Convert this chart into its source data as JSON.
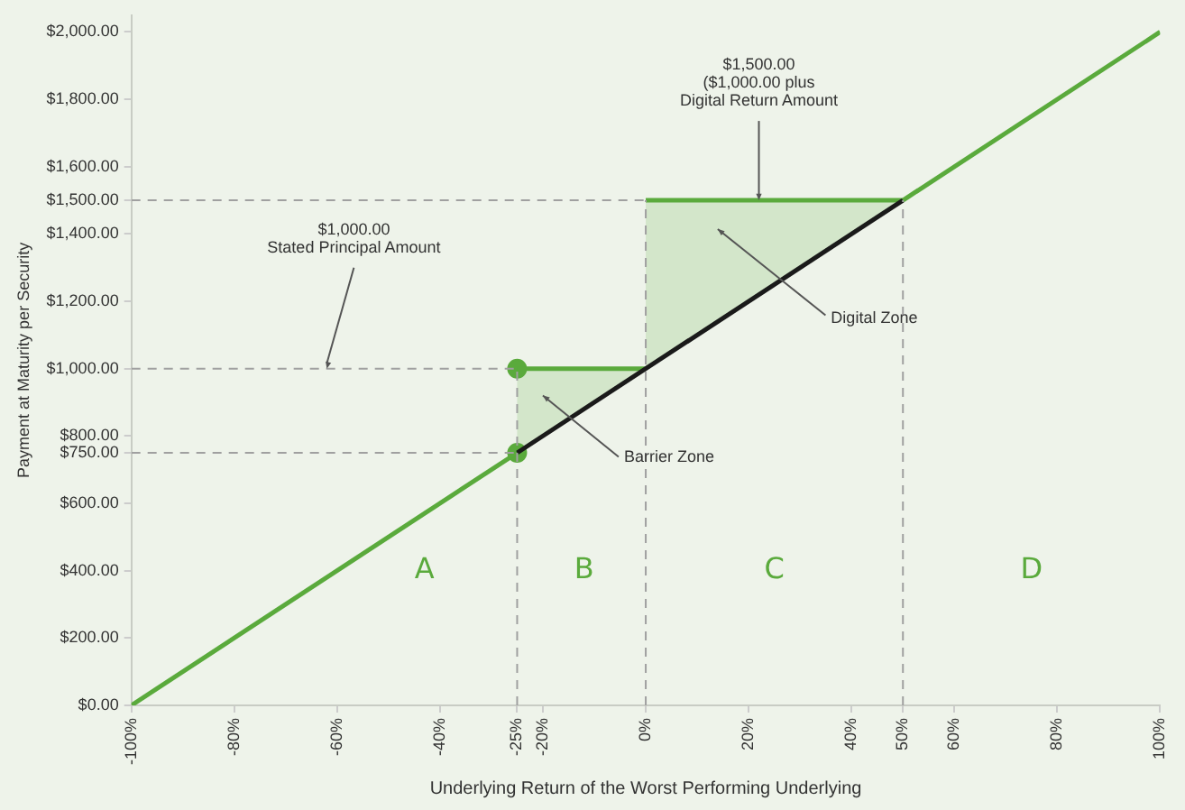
{
  "chart_data": {
    "type": "line",
    "xlabel": "Underlying Return of the Worst Performing Underlying",
    "ylabel": "Payment at Maturity per Security",
    "xlim": [
      -100,
      100
    ],
    "xticks": [
      {
        "value": -100,
        "label": "-100%"
      },
      {
        "value": -80,
        "label": "-80%"
      },
      {
        "value": -60,
        "label": "-60%"
      },
      {
        "value": -40,
        "label": "-40%"
      },
      {
        "value": -25,
        "label": "-25%"
      },
      {
        "value": -20,
        "label": "-20%"
      },
      {
        "value": 0,
        "label": "0%"
      },
      {
        "value": 20,
        "label": "20%"
      },
      {
        "value": 40,
        "label": "40%"
      },
      {
        "value": 50,
        "label": "50%"
      },
      {
        "value": 60,
        "label": "60%"
      },
      {
        "value": 80,
        "label": "80%"
      },
      {
        "value": 100,
        "label": "100%"
      }
    ],
    "ylim": [
      0,
      2050
    ],
    "yticks": [
      {
        "value": 0,
        "label": "$0.00"
      },
      {
        "value": 200,
        "label": "$200.00"
      },
      {
        "value": 400,
        "label": "$400.00"
      },
      {
        "value": 600,
        "label": "$600.00"
      },
      {
        "value": 750,
        "label": "$750.00"
      },
      {
        "value": 800,
        "label": "$800.00"
      },
      {
        "value": 1000,
        "label": "$1,000.00"
      },
      {
        "value": 1200,
        "label": "$1,200.00"
      },
      {
        "value": 1400,
        "label": "$1,400.00"
      },
      {
        "value": 1500,
        "label": "$1,500.00"
      },
      {
        "value": 1600,
        "label": "$1,600.00"
      },
      {
        "value": 1800,
        "label": "$1,800.00"
      },
      {
        "value": 2000,
        "label": "$2,000.00"
      }
    ],
    "grid": false,
    "legend": false,
    "series": [
      {
        "type": "line",
        "color": "#a0a0a0",
        "line_style": "dashed",
        "x": [
          -100,
          0
        ],
        "values": [
          1500,
          1500
        ]
      },
      {
        "type": "line",
        "color": "#a0a0a0",
        "line_style": "dashed",
        "x": [
          -100,
          -25
        ],
        "values": [
          1000,
          1000
        ]
      },
      {
        "type": "line",
        "color": "#a0a0a0",
        "line_style": "dashed",
        "x": [
          -100,
          -25
        ],
        "values": [
          750,
          750
        ]
      },
      {
        "type": "line",
        "color": "#a0a0a0",
        "line_style": "dashed",
        "x": [
          -25,
          -25
        ],
        "values": [
          0,
          1000
        ]
      },
      {
        "type": "line",
        "color": "#a0a0a0",
        "line_style": "dashed",
        "x": [
          0,
          0
        ],
        "values": [
          0,
          1500
        ]
      },
      {
        "type": "line",
        "color": "#a0a0a0",
        "line_style": "dashed",
        "x": [
          50,
          50
        ],
        "values": [
          0,
          1500
        ]
      },
      {
        "type": "line",
        "color": "#5aaa3c",
        "line_style": "solid",
        "x": [
          -100,
          -25
        ],
        "values": [
          0,
          750
        ]
      },
      {
        "type": "line",
        "color": "#1a1a1a",
        "line_style": "solid",
        "x": [
          -25,
          50
        ],
        "values": [
          750,
          1500
        ]
      },
      {
        "color": "#5aaa3c",
        "line_style": "solid",
        "x": [
          -25,
          0
        ],
        "values": [
          1000,
          1000
        ],
        "lower": [
          750,
          1000
        ],
        "upper": [
          1000,
          1000
        ]
      },
      {
        "color": "#5aaa3c",
        "line_style": "solid",
        "x": [
          0,
          50
        ],
        "values": [
          1500,
          1500
        ],
        "lower": [
          1000,
          1500
        ],
        "upper": [
          1500,
          1500
        ]
      },
      {
        "type": "line",
        "color": "#5aaa3c",
        "line_style": "solid",
        "x": [
          50,
          100
        ],
        "values": [
          1500,
          2000
        ]
      },
      {
        "type": "scatter",
        "color": "#5aaa3c",
        "marker": "circle",
        "x": [
          -25,
          -25
        ],
        "values": [
          750,
          1000
        ]
      }
    ],
    "annotations": [
      {
        "text": "$1,000.00\nStated Principal Amount",
        "x": -62,
        "y": 1000
      },
      {
        "text": "$1,500.00\n($1,000.00 plus\nDigital Return Amount",
        "x": 22,
        "y": 1500
      },
      {
        "text": "Barrier Zone",
        "x": -20,
        "y": 920
      },
      "Digital Zone",
      "A",
      "B",
      "C",
      "D"
    ]
  }
}
